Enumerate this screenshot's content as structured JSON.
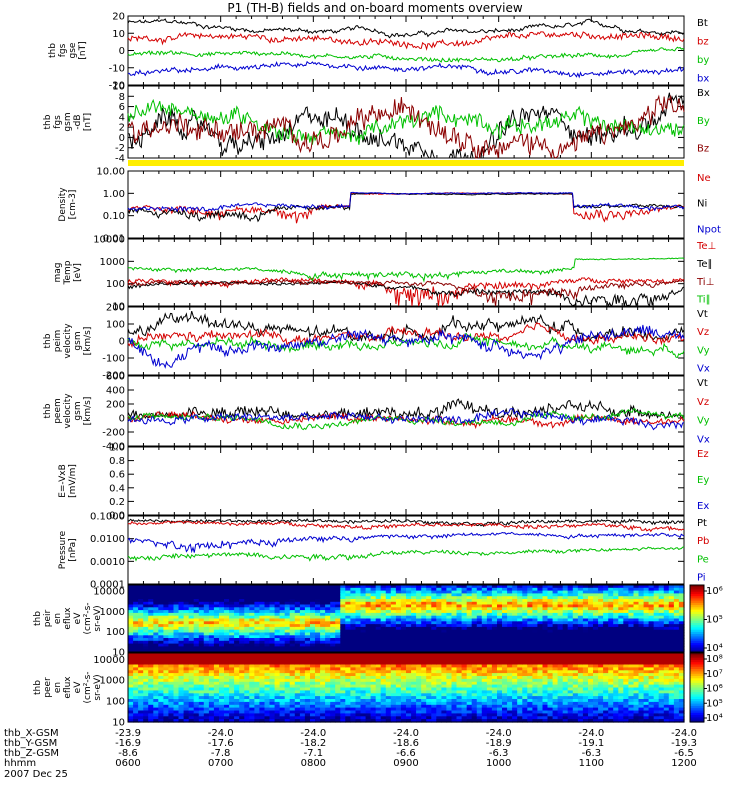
{
  "title": "P1 (TH-B) fields and on-board moments overview",
  "date_label": "2007 Dec 25",
  "time_axis": {
    "rows": [
      {
        "label": "thb_X-GSM",
        "values": [
          "-23.9",
          "-24.0",
          "-24.0",
          "-24.0",
          "-24.0",
          "-24.0",
          "-24.0"
        ]
      },
      {
        "label": "thb_Y-GSM",
        "values": [
          "-16.9",
          "-17.6",
          "-18.2",
          "-18.6",
          "-18.9",
          "-19.1",
          "-19.3"
        ]
      },
      {
        "label": "thb_Z-GSM",
        "values": [
          "-8.6",
          "-7.8",
          "-7.1",
          "-6.6",
          "-6.3",
          "-6.3",
          "-6.5"
        ]
      },
      {
        "label": "hhmm",
        "values": [
          "0600",
          "0700",
          "0800",
          "0900",
          "1000",
          "1100",
          "1200"
        ]
      }
    ]
  },
  "chart_data": [
    {
      "type": "line",
      "panel": "fgs",
      "ylabel_lines": [
        "thb",
        "fgs",
        "gse",
        "[nT]"
      ],
      "ylim": [
        -20,
        20
      ],
      "yticks": [
        "20",
        "10",
        "0",
        "-10",
        "-20"
      ],
      "legend": [
        {
          "name": "Bt",
          "color": "#000000"
        },
        {
          "name": "bz",
          "color": "#d40000"
        },
        {
          "name": "by",
          "color": "#00c000"
        },
        {
          "name": "bx",
          "color": "#0000d0"
        }
      ]
    },
    {
      "type": "line",
      "panel": "fgs_gsm",
      "ylabel_lines": [
        "thb",
        "fgs",
        "gsm",
        "-dB",
        "[nT]"
      ],
      "ylim": [
        -4,
        10
      ],
      "yticks": [
        "10",
        "8",
        "6",
        "4",
        "2",
        "0",
        "-2",
        "-4"
      ],
      "legend": [
        {
          "name": "Bx",
          "color": "#000000"
        },
        {
          "name": "By",
          "color": "#00c000"
        },
        {
          "name": "Bz",
          "color": "#8b0000"
        }
      ]
    },
    {
      "type": "line",
      "panel": "density",
      "yscale": "log",
      "ylabel_lines": [
        "Density",
        "[cm-3]"
      ],
      "ylim": [
        0.01,
        10
      ],
      "yticks": [
        "10.00",
        "1.00",
        "0.10",
        "0.01"
      ],
      "legend": [
        {
          "name": "Ne",
          "color": "#d40000"
        },
        {
          "name": "Ni",
          "color": "#000000"
        },
        {
          "name": "Npot",
          "color": "#0000d0"
        }
      ]
    },
    {
      "type": "line",
      "panel": "temperature",
      "yscale": "log",
      "ylabel_lines": [
        "mag",
        "Temp",
        "[eV]"
      ],
      "ylim": [
        10,
        10000
      ],
      "yticks": [
        "10000",
        "1000",
        "100",
        "10"
      ],
      "legend": [
        {
          "name": "Te⊥",
          "color": "#d40000"
        },
        {
          "name": "Te∥",
          "color": "#000000"
        },
        {
          "name": "Ti⊥",
          "color": "#8b0000"
        },
        {
          "name": "Ti∥",
          "color": "#00c000"
        }
      ]
    },
    {
      "type": "line",
      "panel": "peim_velocity",
      "ylabel_lines": [
        "thb",
        "peim",
        "velocity",
        "gsm",
        "[km/s]"
      ],
      "ylim": [
        -200,
        200
      ],
      "yticks": [
        "200",
        "100",
        "0",
        "-100",
        "-200"
      ],
      "legend": [
        {
          "name": "Vt",
          "color": "#000000"
        },
        {
          "name": "Vz",
          "color": "#d40000"
        },
        {
          "name": "Vy",
          "color": "#00c000"
        },
        {
          "name": "Vx",
          "color": "#0000d0"
        }
      ]
    },
    {
      "type": "line",
      "panel": "peem_velocity",
      "ylabel_lines": [
        "thb",
        "peem",
        "velocity",
        "gsm",
        "[km/s]"
      ],
      "ylim": [
        -400,
        600
      ],
      "yticks": [
        "600",
        "400",
        "200",
        "0",
        "-200",
        "-400"
      ],
      "legend": [
        {
          "name": "Vt",
          "color": "#000000"
        },
        {
          "name": "Vz",
          "color": "#d40000"
        },
        {
          "name": "Vy",
          "color": "#00c000"
        },
        {
          "name": "Vx",
          "color": "#0000d0"
        }
      ]
    },
    {
      "type": "line",
      "panel": "efield",
      "ylabel_lines": [
        "E=-VxB",
        "[mV/m]"
      ],
      "ylim": [
        0,
        1
      ],
      "yticks": [
        "1.0",
        "0.8",
        "0.6",
        "0.4",
        "0.2",
        "0.0"
      ],
      "legend": [
        {
          "name": "Ez",
          "color": "#d40000"
        },
        {
          "name": "Ey",
          "color": "#00c000"
        },
        {
          "name": "Ex",
          "color": "#0000d0"
        }
      ]
    },
    {
      "type": "line",
      "panel": "pressure",
      "yscale": "log",
      "ylabel_lines": [
        "Pressure",
        "[nPa]"
      ],
      "ylim": [
        0.0001,
        0.1
      ],
      "yticks": [
        "0.1000",
        "0.0100",
        "0.0010",
        "0.0001"
      ],
      "legend": [
        {
          "name": "Pt",
          "color": "#000000"
        },
        {
          "name": "Pb",
          "color": "#d40000"
        },
        {
          "name": "Pe",
          "color": "#00c000"
        },
        {
          "name": "Pi",
          "color": "#0000d0"
        }
      ]
    },
    {
      "type": "heatmap",
      "panel": "peir_spectrogram",
      "yscale": "log",
      "ylabel_lines": [
        "thb",
        "peir",
        "en",
        "eflux",
        "eV",
        "(cm²-s-",
        "sr-eV)"
      ],
      "ylim": [
        10,
        20000
      ],
      "yticks": [
        "10000",
        "1000",
        "100",
        "10"
      ],
      "colorbar_ticks": [
        "10⁶",
        "10⁵",
        "10⁴"
      ],
      "colorbar_range": [
        3,
        6.3
      ]
    },
    {
      "type": "heatmap",
      "panel": "peer_spectrogram",
      "yscale": "log",
      "ylabel_lines": [
        "thb",
        "peer",
        "en",
        "eflux",
        "eV",
        "(cm²-s-",
        "sr-eV)"
      ],
      "ylim": [
        10,
        20000
      ],
      "yticks": [
        "10000",
        "1000",
        "100",
        "10"
      ],
      "colorbar_ticks": [
        "10⁸",
        "10⁷",
        "10⁶",
        "10⁵",
        "10⁴"
      ],
      "colorbar_range": [
        3.5,
        8
      ]
    }
  ]
}
